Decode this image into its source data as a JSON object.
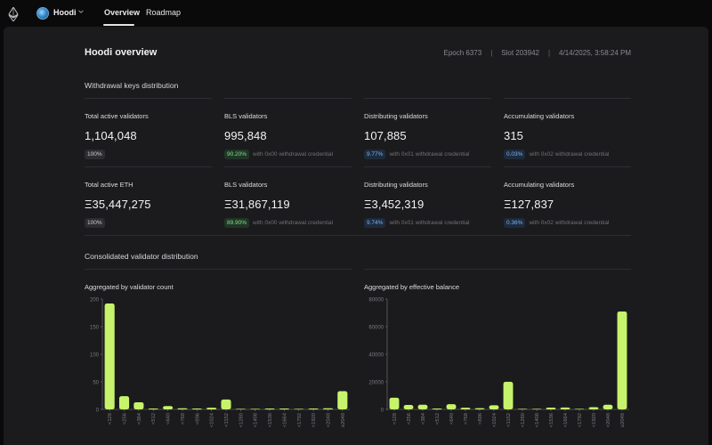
{
  "nav": {
    "network": "Hoodi",
    "tabs": [
      {
        "label": "Overview",
        "active": true
      },
      {
        "label": "Roadmap",
        "active": false
      }
    ]
  },
  "header": {
    "title": "Hoodi overview",
    "epoch": "Epoch 6373",
    "slot": "Slot 203942",
    "timestamp": "4/14/2025, 3:58:24 PM"
  },
  "withdrawal": {
    "title": "Withdrawal keys distribution",
    "row1": [
      {
        "label": "Total active validators",
        "value": "1,104,048",
        "badge": "100%",
        "note": ""
      },
      {
        "label": "BLS validators",
        "value": "995,848",
        "badge": "90.20%",
        "note": "with 0x00 withdrawal credential"
      },
      {
        "label": "Distributing validators",
        "value": "107,885",
        "badge": "9.77%",
        "note": "with 0x01 withdrawal credential"
      },
      {
        "label": "Accumulating validators",
        "value": "315",
        "badge": "0.03%",
        "note": "with 0x02 withdrawal credential"
      }
    ],
    "row2": [
      {
        "label": "Total active ETH",
        "value": "Ξ35,447,275",
        "badge": "100%",
        "note": ""
      },
      {
        "label": "BLS validators",
        "value": "Ξ31,867,119",
        "badge": "89.90%",
        "note": "with 0x00 withdrawal credential"
      },
      {
        "label": "Distributing validators",
        "value": "Ξ3,452,319",
        "badge": "9.74%",
        "note": "with 0x01 withdrawal credential"
      },
      {
        "label": "Accumulating validators",
        "value": "Ξ127,837",
        "badge": "0.36%",
        "note": "with 0x02 withdrawal credential"
      }
    ]
  },
  "consolidated": {
    "title": "Consolidated validator distribution"
  },
  "colors": {
    "bar": "#c6f36b",
    "axis": "#7a7a82",
    "grid": "#2a2a2f"
  },
  "chart_data": [
    {
      "type": "bar",
      "title": "Aggregated by validator count",
      "categories": [
        "<128",
        "<256",
        "<384",
        "<512",
        "<640",
        "<768",
        "<896",
        "<1024",
        "<1152",
        "<1280",
        "<1408",
        "<1536",
        "<1664",
        "<1792",
        "<1920",
        "<2048",
        "≥2048"
      ],
      "values": [
        192,
        24,
        13,
        1,
        6,
        2,
        1,
        3,
        18,
        0,
        0,
        1,
        1,
        0,
        1,
        2,
        33
      ],
      "ylim": [
        0,
        200
      ],
      "yticks": [
        0,
        50,
        100,
        150,
        200
      ]
    },
    {
      "type": "bar",
      "title": "Aggregated by effective balance",
      "categories": [
        "<128",
        "<256",
        "<384",
        "<512",
        "<640",
        "<768",
        "<896",
        "<1024",
        "<1152",
        "<1280",
        "<1408",
        "<1536",
        "<1664",
        "<1792",
        "<1920",
        "<2048",
        "≥2048"
      ],
      "values": [
        8500,
        3200,
        3400,
        400,
        3800,
        1200,
        900,
        3000,
        20000,
        0,
        0,
        1300,
        1400,
        0,
        1600,
        3400,
        71000
      ],
      "ylim": [
        0,
        80000
      ],
      "yticks": [
        0,
        20000,
        40000,
        60000,
        80000
      ]
    }
  ]
}
